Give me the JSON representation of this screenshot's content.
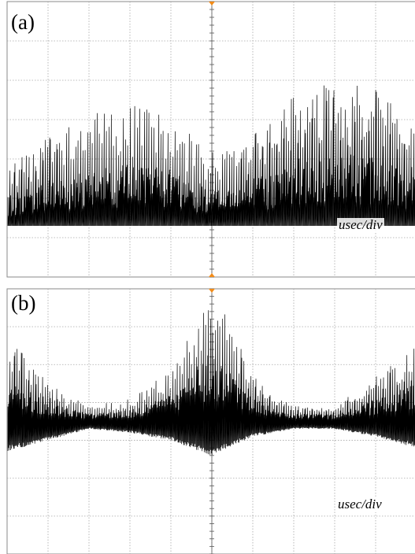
{
  "panels": [
    {
      "id": "a",
      "label": "(a)",
      "unit_label": "usec/div"
    },
    {
      "id": "b",
      "label": "(b)",
      "unit_label": "usec/div"
    }
  ],
  "colors": {
    "trace": "#000000",
    "grid": "#a6a6a6",
    "frame": "#8a8a8a",
    "center_axis": "#555555",
    "marker": "#f28c1a",
    "background": "#ffffff"
  },
  "chart_data": [
    {
      "type": "line",
      "title": "(a)",
      "xlabel": "usec/div",
      "ylabel": "",
      "grid": true,
      "x_divisions": 10,
      "y_divisions": 7,
      "envelope_x": [
        0,
        1,
        2,
        3,
        4,
        5,
        6,
        7,
        8,
        9,
        10
      ],
      "envelope_upper_y": [
        2.8,
        3.6,
        4.1,
        4.5,
        4.2,
        3.2,
        3.7,
        4.7,
        5.0,
        4.8,
        3.9
      ],
      "baseline_y": 1.3
    },
    {
      "type": "line",
      "title": "(b)",
      "xlabel": "usec/div",
      "ylabel": "",
      "grid": true,
      "x_divisions": 10,
      "y_divisions": 7,
      "envelope_x": [
        0,
        1,
        2,
        3,
        4,
        5,
        6,
        7,
        8,
        9,
        10
      ],
      "envelope_upper_y": [
        2.4,
        1.0,
        0.4,
        0.6,
        1.4,
        3.8,
        1.2,
        0.4,
        0.4,
        1.2,
        2.0
      ],
      "envelope_lower_y": [
        -0.8,
        -0.5,
        -0.2,
        -0.3,
        -0.5,
        -0.9,
        -0.4,
        -0.2,
        -0.2,
        -0.4,
        -0.7
      ],
      "baseline_y": 0.0
    }
  ]
}
